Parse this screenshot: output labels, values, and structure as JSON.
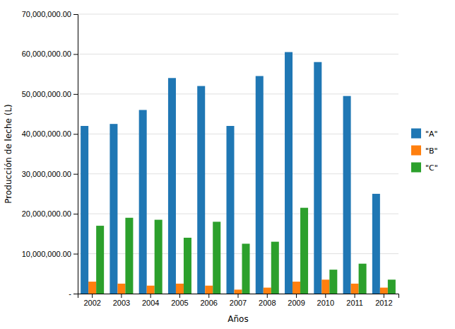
{
  "chart_data": {
    "type": "bar",
    "x_label": "Años",
    "y_label": "Producción de leche (L)",
    "categories": [
      "2002",
      "2003",
      "2004",
      "2005",
      "2006",
      "2007",
      "2008",
      "2009",
      "2010",
      "2011",
      "2012"
    ],
    "series": [
      {
        "name": "\"A\"",
        "values": [
          42000000,
          42500000,
          46000000,
          54000000,
          52000000,
          42000000,
          54500000,
          60500000,
          58000000,
          49500000,
          25000000
        ]
      },
      {
        "name": "\"B\"",
        "values": [
          3000000,
          2500000,
          2000000,
          2500000,
          2000000,
          1000000,
          1500000,
          3000000,
          3500000,
          2500000,
          1500000
        ]
      },
      {
        "name": "\"C\"",
        "values": [
          17000000,
          19000000,
          18500000,
          14000000,
          18000000,
          12500000,
          13000000,
          21500000,
          6000000,
          7500000,
          3500000
        ]
      }
    ],
    "ylim": [
      0,
      70000000
    ],
    "yticks": [
      {
        "value": 0,
        "label": " -"
      },
      {
        "value": 10000000,
        "label": "10,000,000.00"
      },
      {
        "value": 20000000,
        "label": "20,000,000.00"
      },
      {
        "value": 30000000,
        "label": "30,000,000.00"
      },
      {
        "value": 40000000,
        "label": "40,000,000.00"
      },
      {
        "value": 50000000,
        "label": "50,000,000.00"
      },
      {
        "value": 60000000,
        "label": "60,000,000.00"
      },
      {
        "value": 70000000,
        "label": "70,000,000.00"
      }
    ],
    "grid": true,
    "legend": "right"
  }
}
